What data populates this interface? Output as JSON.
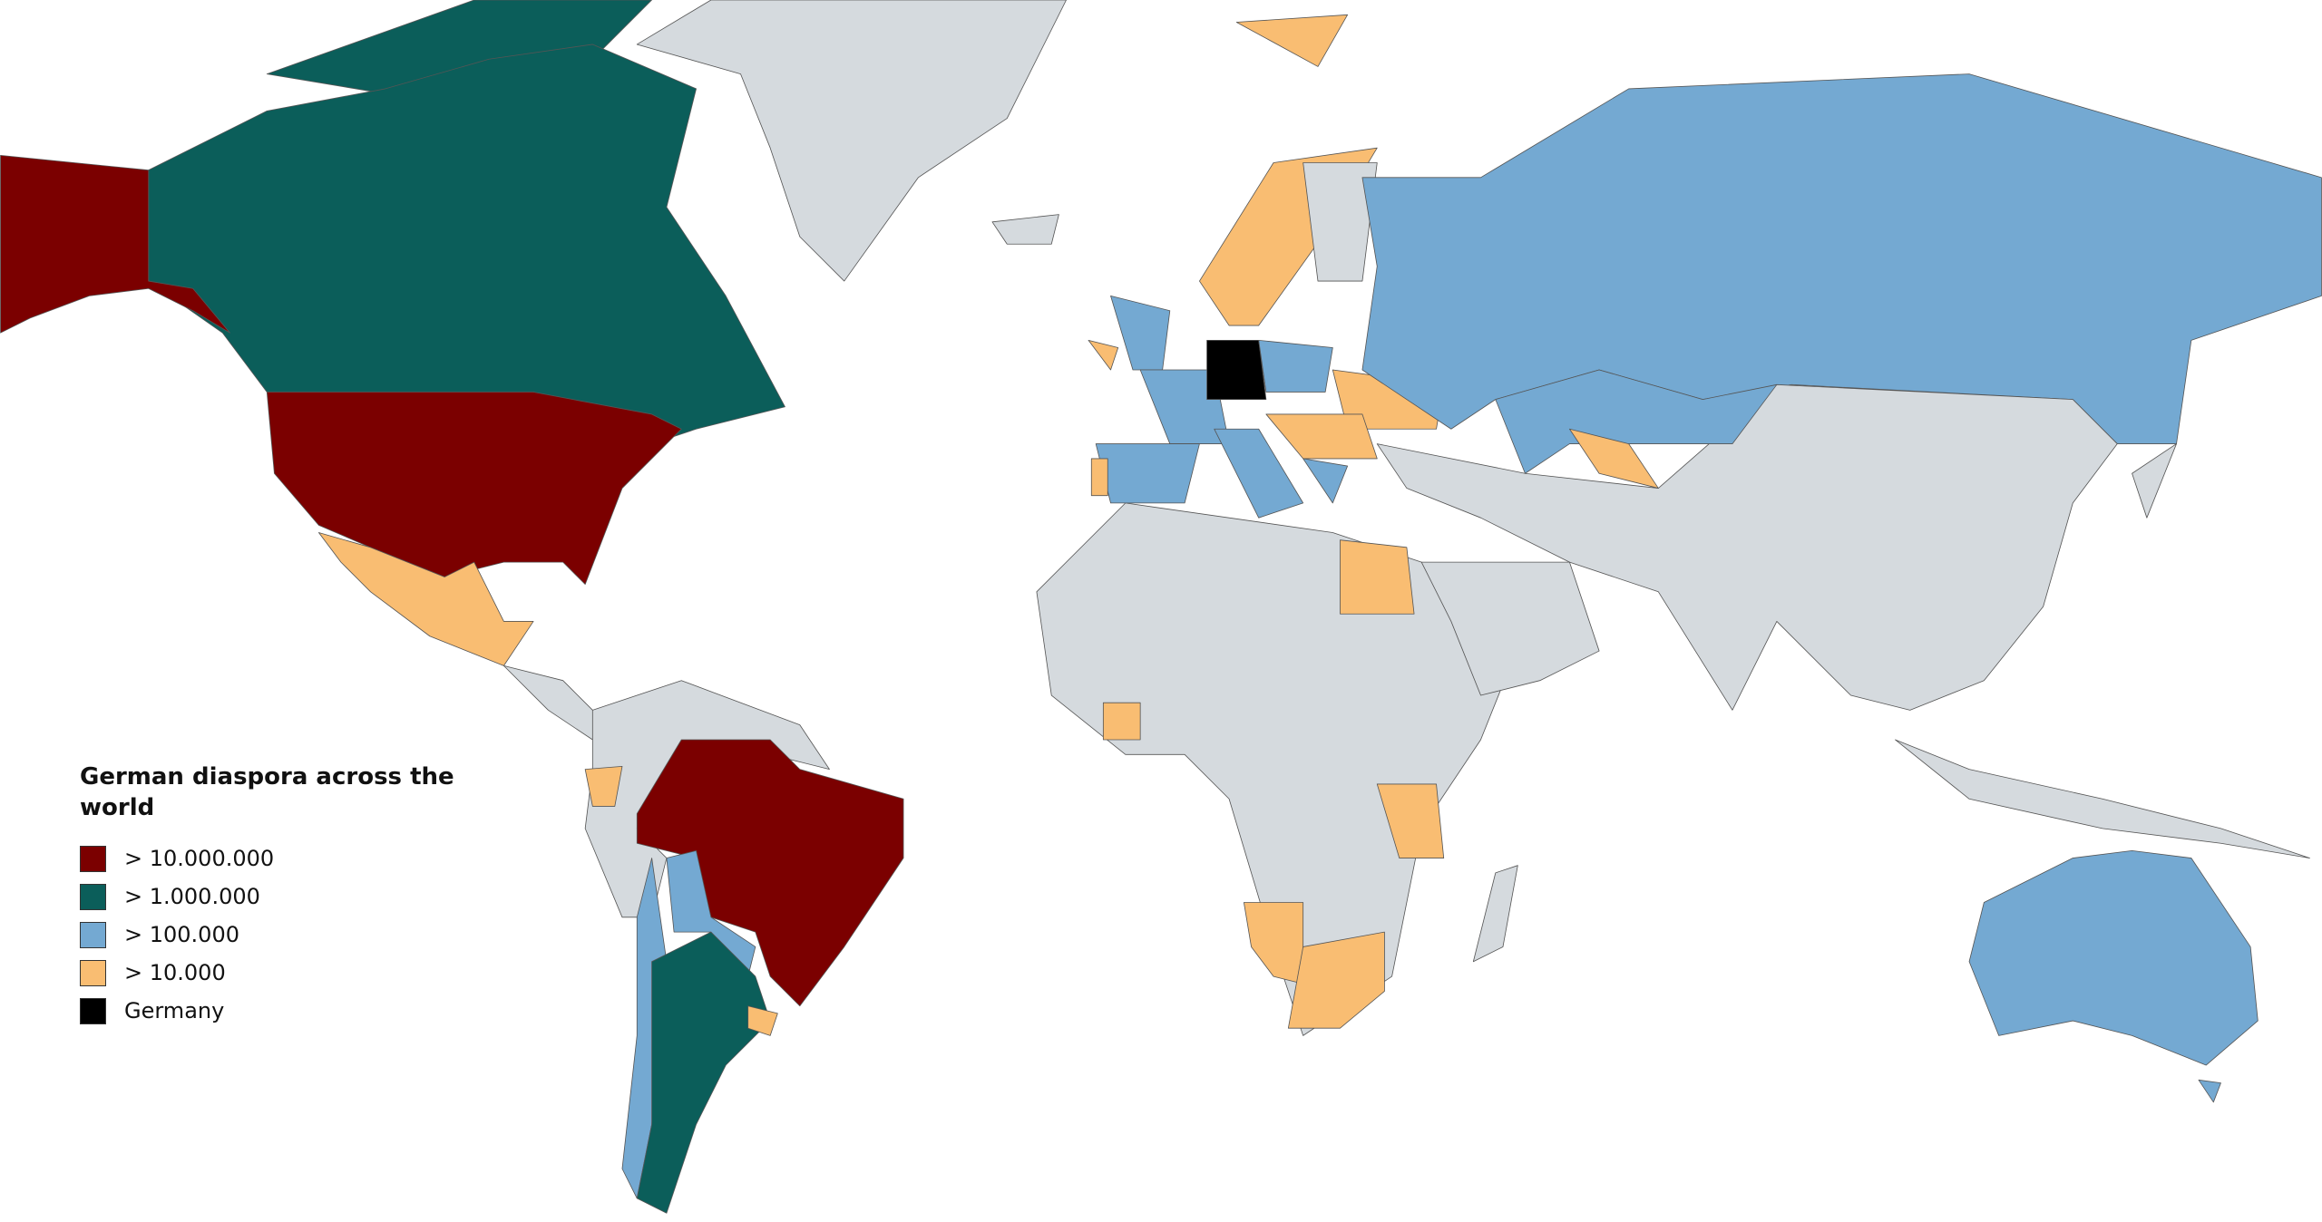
{
  "legend": {
    "title": "German diaspora across the world",
    "items": [
      {
        "label": "> 10.000.000",
        "color": "#7b0000"
      },
      {
        "label": "> 1.000.000",
        "color": "#0b5e5a"
      },
      {
        "label": "> 100.000",
        "color": "#74a9d2"
      },
      {
        "label": "> 10.000",
        "color": "#f9bd72"
      },
      {
        "label": "Germany",
        "color": "#000000"
      }
    ]
  }
}
